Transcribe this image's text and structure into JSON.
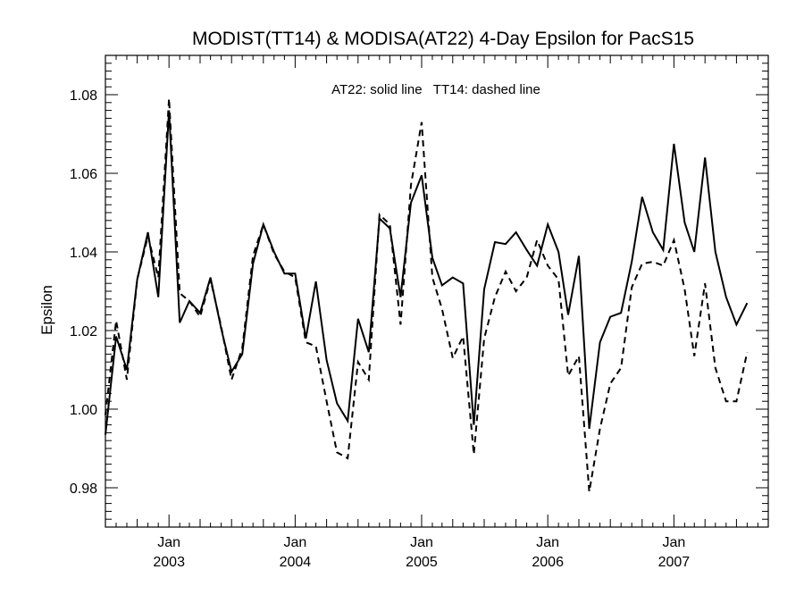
{
  "chart_data": {
    "type": "line",
    "title": "MODIST(TT14) & MODISA(AT22) 4-Day Epsilon for PacS15",
    "xlabel": "",
    "ylabel": "Epsilon",
    "annotation": "AT22: solid line   TT14: dashed line",
    "grid": false,
    "xlim": [
      "2002-07-01",
      "2007-10-01"
    ],
    "ylim": [
      0.97,
      1.09
    ],
    "yticks": [
      0.98,
      1.0,
      1.02,
      1.04,
      1.06,
      1.08
    ],
    "ytick_labels": [
      "0.98",
      "1.00",
      "1.02",
      "1.04",
      "1.06",
      "1.08"
    ],
    "xticks": [
      {
        "date": "2003-01-01",
        "month": "Jan",
        "year": "2003"
      },
      {
        "date": "2004-01-01",
        "month": "Jan",
        "year": "2004"
      },
      {
        "date": "2005-01-01",
        "month": "Jan",
        "year": "2005"
      },
      {
        "date": "2006-01-01",
        "month": "Jan",
        "year": "2006"
      },
      {
        "date": "2007-01-01",
        "month": "Jan",
        "year": "2007"
      }
    ],
    "series": [
      {
        "name": "AT22",
        "style": "solid",
        "color": "#000000",
        "points": [
          [
            "2002-07-01",
            0.9935
          ],
          [
            "2002-08-01",
            1.0185
          ],
          [
            "2002-09-01",
            1.01
          ],
          [
            "2002-10-01",
            1.033
          ],
          [
            "2002-11-01",
            1.045
          ],
          [
            "2002-12-01",
            1.0285
          ],
          [
            "2003-01-01",
            1.076
          ],
          [
            "2003-02-01",
            1.022
          ],
          [
            "2003-03-01",
            1.0275
          ],
          [
            "2003-04-01",
            1.0245
          ],
          [
            "2003-05-01",
            1.0335
          ],
          [
            "2003-06-01",
            1.0205
          ],
          [
            "2003-07-01",
            1.0095
          ],
          [
            "2003-08-01",
            1.014
          ],
          [
            "2003-09-01",
            1.037
          ],
          [
            "2003-10-01",
            1.047
          ],
          [
            "2003-11-01",
            1.04
          ],
          [
            "2003-12-01",
            1.0345
          ],
          [
            "2004-01-01",
            1.0345
          ],
          [
            "2004-02-01",
            1.018
          ],
          [
            "2004-03-01",
            1.0325
          ],
          [
            "2004-04-01",
            1.0125
          ],
          [
            "2004-05-01",
            1.0015
          ],
          [
            "2004-06-01",
            0.997
          ],
          [
            "2004-07-01",
            1.023
          ],
          [
            "2004-08-01",
            1.0145
          ],
          [
            "2004-09-01",
            1.0485
          ],
          [
            "2004-10-01",
            1.046
          ],
          [
            "2004-11-01",
            1.0285
          ],
          [
            "2004-12-01",
            1.0525
          ],
          [
            "2005-01-01",
            1.0595
          ],
          [
            "2005-02-01",
            1.0385
          ],
          [
            "2005-03-01",
            1.0315
          ],
          [
            "2005-04-01",
            1.0335
          ],
          [
            "2005-05-01",
            1.032
          ],
          [
            "2005-06-01",
            0.996
          ],
          [
            "2005-07-01",
            1.0305
          ],
          [
            "2005-08-01",
            1.0425
          ],
          [
            "2005-09-01",
            1.042
          ],
          [
            "2005-10-01",
            1.045
          ],
          [
            "2005-11-01",
            1.0405
          ],
          [
            "2005-12-01",
            1.0365
          ],
          [
            "2006-01-01",
            1.047
          ],
          [
            "2006-02-01",
            1.04
          ],
          [
            "2006-03-01",
            1.024
          ],
          [
            "2006-04-01",
            1.039
          ],
          [
            "2006-05-01",
            0.995
          ],
          [
            "2006-06-01",
            1.017
          ],
          [
            "2006-07-01",
            1.0235
          ],
          [
            "2006-08-01",
            1.0245
          ],
          [
            "2006-09-01",
            1.0375
          ],
          [
            "2006-10-01",
            1.054
          ],
          [
            "2006-11-01",
            1.045
          ],
          [
            "2006-12-01",
            1.0405
          ],
          [
            "2007-01-01",
            1.0675
          ],
          [
            "2007-02-01",
            1.0475
          ],
          [
            "2007-03-01",
            1.04
          ],
          [
            "2007-04-01",
            1.064
          ],
          [
            "2007-05-01",
            1.04
          ],
          [
            "2007-06-01",
            1.0285
          ],
          [
            "2007-07-01",
            1.0215
          ],
          [
            "2007-08-01",
            1.027
          ]
        ]
      },
      {
        "name": "TT14",
        "style": "dashed",
        "color": "#000000",
        "points": [
          [
            "2002-07-01",
            0.9985
          ],
          [
            "2002-08-01",
            1.0225
          ],
          [
            "2002-09-01",
            1.0075
          ],
          [
            "2002-10-01",
            1.033
          ],
          [
            "2002-11-01",
            1.044
          ],
          [
            "2002-12-01",
            1.0335
          ],
          [
            "2003-01-01",
            1.079
          ],
          [
            "2003-02-01",
            1.0295
          ],
          [
            "2003-03-01",
            1.0275
          ],
          [
            "2003-04-01",
            1.0235
          ],
          [
            "2003-05-01",
            1.033
          ],
          [
            "2003-06-01",
            1.021
          ],
          [
            "2003-07-01",
            1.0075
          ],
          [
            "2003-08-01",
            1.0155
          ],
          [
            "2003-09-01",
            1.039
          ],
          [
            "2003-10-01",
            1.047
          ],
          [
            "2003-11-01",
            1.0395
          ],
          [
            "2003-12-01",
            1.035
          ],
          [
            "2004-01-01",
            1.0335
          ],
          [
            "2004-02-01",
            1.017
          ],
          [
            "2004-03-01",
            1.016
          ],
          [
            "2004-04-01",
            1.002
          ],
          [
            "2004-05-01",
            0.989
          ],
          [
            "2004-06-01",
            0.9875
          ],
          [
            "2004-07-01",
            1.012
          ],
          [
            "2004-08-01",
            1.0075
          ],
          [
            "2004-09-01",
            1.0495
          ],
          [
            "2004-10-01",
            1.047
          ],
          [
            "2004-11-01",
            1.0215
          ],
          [
            "2004-12-01",
            1.057
          ],
          [
            "2005-01-01",
            1.073
          ],
          [
            "2005-02-01",
            1.0335
          ],
          [
            "2005-03-01",
            1.0255
          ],
          [
            "2005-04-01",
            1.013
          ],
          [
            "2005-05-01",
            1.0185
          ],
          [
            "2005-06-01",
            0.9885
          ],
          [
            "2005-07-01",
            1.018
          ],
          [
            "2005-08-01",
            1.0285
          ],
          [
            "2005-09-01",
            1.035
          ],
          [
            "2005-10-01",
            1.03
          ],
          [
            "2005-11-01",
            1.0335
          ],
          [
            "2005-12-01",
            1.043
          ],
          [
            "2006-01-01",
            1.0365
          ],
          [
            "2006-02-01",
            1.033
          ],
          [
            "2006-03-01",
            1.0085
          ],
          [
            "2006-04-01",
            1.0135
          ],
          [
            "2006-05-01",
            0.979
          ],
          [
            "2006-06-01",
            0.995
          ],
          [
            "2006-07-01",
            1.0065
          ],
          [
            "2006-08-01",
            1.0105
          ],
          [
            "2006-09-01",
            1.031
          ],
          [
            "2006-10-01",
            1.037
          ],
          [
            "2006-11-01",
            1.0375
          ],
          [
            "2006-12-01",
            1.0365
          ],
          [
            "2007-01-01",
            1.043
          ],
          [
            "2007-02-01",
            1.0305
          ],
          [
            "2007-03-01",
            1.0135
          ],
          [
            "2007-04-01",
            1.032
          ],
          [
            "2007-05-01",
            1.0105
          ],
          [
            "2007-06-01",
            1.002
          ],
          [
            "2007-07-01",
            1.002
          ],
          [
            "2007-08-01",
            1.0145
          ]
        ]
      }
    ]
  }
}
